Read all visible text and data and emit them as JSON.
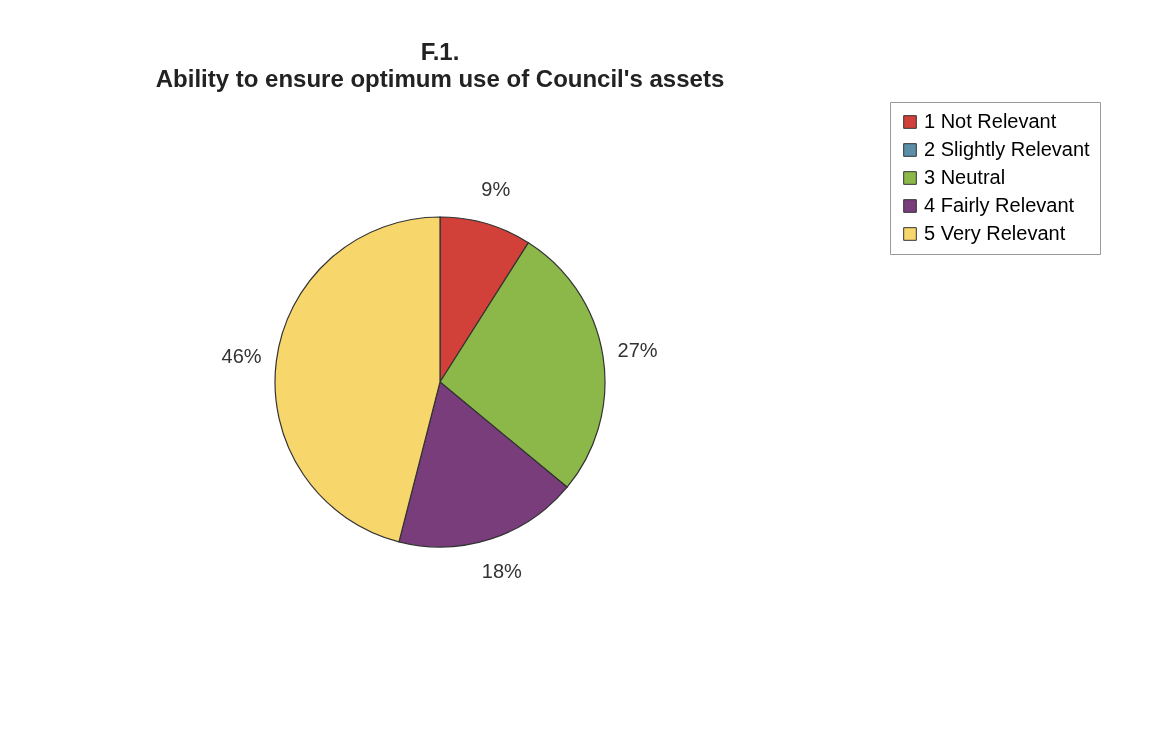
{
  "chart_data": {
    "type": "pie",
    "title": "F.1.",
    "subtitle": "Ability to ensure optimum use of Council's assets",
    "categories": [
      "1 Not Relevant",
      "2 Slightly Relevant",
      "3 Neutral",
      "4 Fairly Relevant",
      "5 Very Relevant"
    ],
    "values": [
      9,
      0,
      27,
      18,
      46
    ],
    "value_labels": [
      "9%",
      null,
      "27%",
      "18%",
      "46%"
    ],
    "colors": [
      "#d2403a",
      "#5b8fa8",
      "#8cb84a",
      "#7a3d7c",
      "#f7d66c"
    ],
    "legend": "right"
  }
}
